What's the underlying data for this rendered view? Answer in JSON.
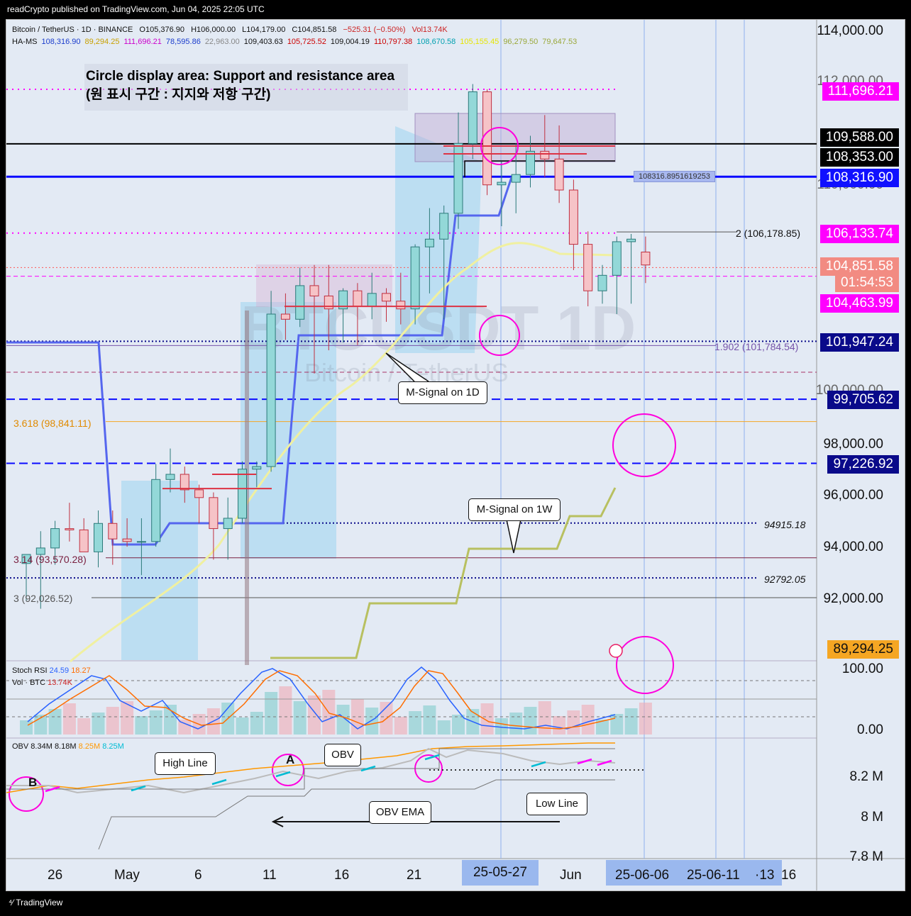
{
  "caption": "readCrypto published on TradingView.com, Jun 04, 2025 22:05 UTC",
  "brand": "TradingView",
  "header": {
    "row1": [
      "Bitcoin / TetherUS · 1D · BINANCE",
      "O105,376.90",
      "H106,000.00",
      "L104,179.00",
      "C104,851.58",
      "−525.31 (−0.50%)",
      "Vol13.74K"
    ],
    "row2": [
      "HA-MS",
      "108,316.90",
      "89,294.25",
      "111,696.21",
      "78,595.86",
      "22,963.00",
      "109,403.63",
      "105,725.52",
      "109,004.19",
      "110,797.38",
      "108,670.58",
      "105,155.45",
      "96,279.50",
      "79,647.53"
    ],
    "row2_colors": [
      "#111111",
      "#1a3ccc",
      "#c8a000",
      "#cc00cc",
      "#1a3ccc",
      "#888888",
      "#111111",
      "#cc0000",
      "#111111",
      "#cc0000",
      "#00a0b0",
      "#e6e600",
      "#9aa83a",
      "#9aa83a"
    ]
  },
  "annotation": {
    "en": "Circle display area: Support and resistance area",
    "ko": "(원 표시 구간 : 지지와 저항 구간)"
  },
  "watermark": {
    "symbol": "BTCUSDT 1D",
    "name": "Bitcoin / TetherUS"
  },
  "price_axis": [
    "114,000.00",
    "112,000.00",
    "110,000.00",
    "100,000.00",
    "98,000.00",
    "96,000.00",
    "94,000.00",
    "92,000.00"
  ],
  "price_labels": [
    {
      "text": "111,696.21",
      "bg": "#ff00ff"
    },
    {
      "text": "109,588.00",
      "bg": "#000000"
    },
    {
      "text": "108,353.00",
      "bg": "#000000"
    },
    {
      "text": "108,316.90",
      "bg": "#1010ff"
    },
    {
      "text": "106,133.74",
      "bg": "#ff00ff"
    },
    {
      "text": "104,851.58",
      "bg": "#f28b82"
    },
    {
      "text": "01:54:53",
      "bg": "#f28b82"
    },
    {
      "text": "104,463.99",
      "bg": "#ff00ff"
    },
    {
      "text": "101,947.24",
      "bg": "#0a0a8a"
    },
    {
      "text": "99,705.62",
      "bg": "#0a0a8a"
    },
    {
      "text": "97,226.92",
      "bg": "#0a0a8a"
    },
    {
      "text": "89,294.25",
      "bg": "#f5a623"
    }
  ],
  "fib_labels": [
    "2 (106,178.85)",
    "1.902 (101,784.54)",
    "3.618 (98,841.11)",
    "3.14 (93,570.28)",
    "3 (92,026.52)"
  ],
  "level_labels": [
    "94915.18",
    "92792.05",
    "108316.8951619253"
  ],
  "callouts": {
    "m1d": "M-Signal on 1D",
    "m1w": "M-Signal on 1W",
    "high": "High Line",
    "obv": "OBV",
    "obvema": "OBV EMA",
    "low": "Low Line",
    "a": "A",
    "b": "B"
  },
  "stoch_legend": {
    "name": "Stoch RSI",
    "k": "24.59",
    "d": "18.27"
  },
  "vol_legend": {
    "name": "Vol · BTC",
    "value": "13.74K"
  },
  "stoch_axis": [
    "100.00",
    "0.00"
  ],
  "obv_legend": {
    "name": "OBV",
    "v1": "8.34M",
    "v2": "8.18M",
    "v3": "8.25M",
    "v4": "8.25M"
  },
  "obv_axis": [
    "8.2 M",
    "8 M",
    "7.8 M"
  ],
  "x_labels": [
    "26",
    "May",
    "6",
    "11",
    "16",
    "21",
    "Jun",
    "·13",
    "16"
  ],
  "x_highlight": [
    "25-05-27",
    "25-06-06",
    "25-06-11"
  ],
  "chart_data": {
    "type": "candlestick",
    "title": "Bitcoin / TetherUS · 1D · BINANCE",
    "ylim": [
      89000,
      114500
    ],
    "candles": [
      {
        "date": "04-22",
        "o": 93350,
        "h": 93700,
        "l": 91900,
        "c": 93700
      },
      {
        "date": "04-23",
        "o": 93700,
        "h": 94600,
        "l": 91600,
        "c": 93950
      },
      {
        "date": "04-24",
        "o": 93950,
        "h": 95000,
        "l": 93300,
        "c": 94700
      },
      {
        "date": "04-25",
        "o": 94700,
        "h": 95700,
        "l": 94200,
        "c": 94650
      },
      {
        "date": "04-26",
        "o": 94650,
        "h": 95100,
        "l": 93800,
        "c": 93800
      },
      {
        "date": "04-27",
        "o": 93800,
        "h": 95400,
        "l": 93200,
        "c": 94900
      },
      {
        "date": "04-28",
        "o": 94900,
        "h": 95400,
        "l": 93300,
        "c": 94300
      },
      {
        "date": "04-29",
        "o": 94300,
        "h": 95100,
        "l": 94000,
        "c": 94200
      },
      {
        "date": "04-30",
        "o": 94200,
        "h": 95100,
        "l": 92900,
        "c": 94200
      },
      {
        "date": "05-01",
        "o": 94200,
        "h": 97200,
        "l": 94000,
        "c": 96600
      },
      {
        "date": "05-02",
        "o": 96600,
        "h": 97800,
        "l": 96100,
        "c": 96800
      },
      {
        "date": "05-03",
        "o": 96800,
        "h": 97100,
        "l": 95700,
        "c": 96200
      },
      {
        "date": "05-04",
        "o": 96200,
        "h": 96400,
        "l": 94900,
        "c": 95900
      },
      {
        "date": "05-05",
        "o": 95900,
        "h": 96100,
        "l": 93500,
        "c": 94700
      },
      {
        "date": "05-06",
        "o": 94700,
        "h": 95900,
        "l": 93500,
        "c": 95100
      },
      {
        "date": "05-07",
        "o": 95100,
        "h": 97300,
        "l": 94900,
        "c": 97000
      },
      {
        "date": "05-08",
        "o": 97000,
        "h": 97300,
        "l": 96300,
        "c": 97100
      },
      {
        "date": "05-09",
        "o": 97100,
        "h": 103900,
        "l": 96900,
        "c": 103000
      },
      {
        "date": "05-10",
        "o": 103000,
        "h": 103800,
        "l": 102000,
        "c": 102800
      },
      {
        "date": "05-11",
        "o": 102800,
        "h": 104800,
        "l": 102500,
        "c": 104100
      },
      {
        "date": "05-12",
        "o": 104100,
        "h": 104900,
        "l": 100700,
        "c": 103700
      },
      {
        "date": "05-13",
        "o": 103700,
        "h": 104900,
        "l": 101600,
        "c": 103200
      },
      {
        "date": "05-14",
        "o": 103200,
        "h": 104000,
        "l": 101900,
        "c": 103900
      },
      {
        "date": "05-15",
        "o": 103900,
        "h": 104200,
        "l": 101800,
        "c": 103300
      },
      {
        "date": "05-16",
        "o": 103300,
        "h": 104600,
        "l": 102800,
        "c": 103800
      },
      {
        "date": "05-17",
        "o": 103800,
        "h": 104000,
        "l": 102700,
        "c": 103500
      },
      {
        "date": "05-18",
        "o": 103500,
        "h": 104600,
        "l": 102600,
        "c": 103200
      },
      {
        "date": "05-19",
        "o": 103200,
        "h": 105700,
        "l": 102600,
        "c": 105600
      },
      {
        "date": "05-20",
        "o": 105600,
        "h": 107100,
        "l": 103800,
        "c": 105900
      },
      {
        "date": "05-21",
        "o": 105900,
        "h": 107200,
        "l": 102800,
        "c": 106900
      },
      {
        "date": "05-22",
        "o": 106900,
        "h": 110800,
        "l": 106300,
        "c": 109600
      },
      {
        "date": "05-23",
        "o": 109600,
        "h": 111900,
        "l": 109000,
        "c": 111600
      },
      {
        "date": "05-24",
        "o": 111600,
        "h": 111700,
        "l": 107600,
        "c": 108000
      },
      {
        "date": "05-25",
        "o": 108000,
        "h": 108900,
        "l": 106400,
        "c": 108100
      },
      {
        "date": "05-26",
        "o": 108100,
        "h": 109600,
        "l": 106900,
        "c": 108400
      },
      {
        "date": "05-27",
        "o": 108400,
        "h": 109900,
        "l": 107900,
        "c": 109300
      },
      {
        "date": "05-28",
        "o": 109300,
        "h": 110700,
        "l": 108300,
        "c": 109000
      },
      {
        "date": "05-29",
        "o": 109000,
        "h": 110300,
        "l": 107300,
        "c": 107800
      },
      {
        "date": "05-30",
        "o": 107800,
        "h": 108200,
        "l": 104700,
        "c": 105700
      },
      {
        "date": "05-31",
        "o": 105700,
        "h": 106200,
        "l": 103300,
        "c": 103900
      },
      {
        "date": "06-01",
        "o": 103900,
        "h": 104900,
        "l": 103400,
        "c": 104500
      },
      {
        "date": "06-02",
        "o": 104500,
        "h": 106000,
        "l": 103000,
        "c": 105800
      },
      {
        "date": "06-03",
        "o": 105800,
        "h": 106100,
        "l": 103400,
        "c": 105900
      },
      {
        "date": "06-04",
        "o": 105400,
        "h": 106000,
        "l": 104200,
        "c": 104900
      }
    ]
  }
}
